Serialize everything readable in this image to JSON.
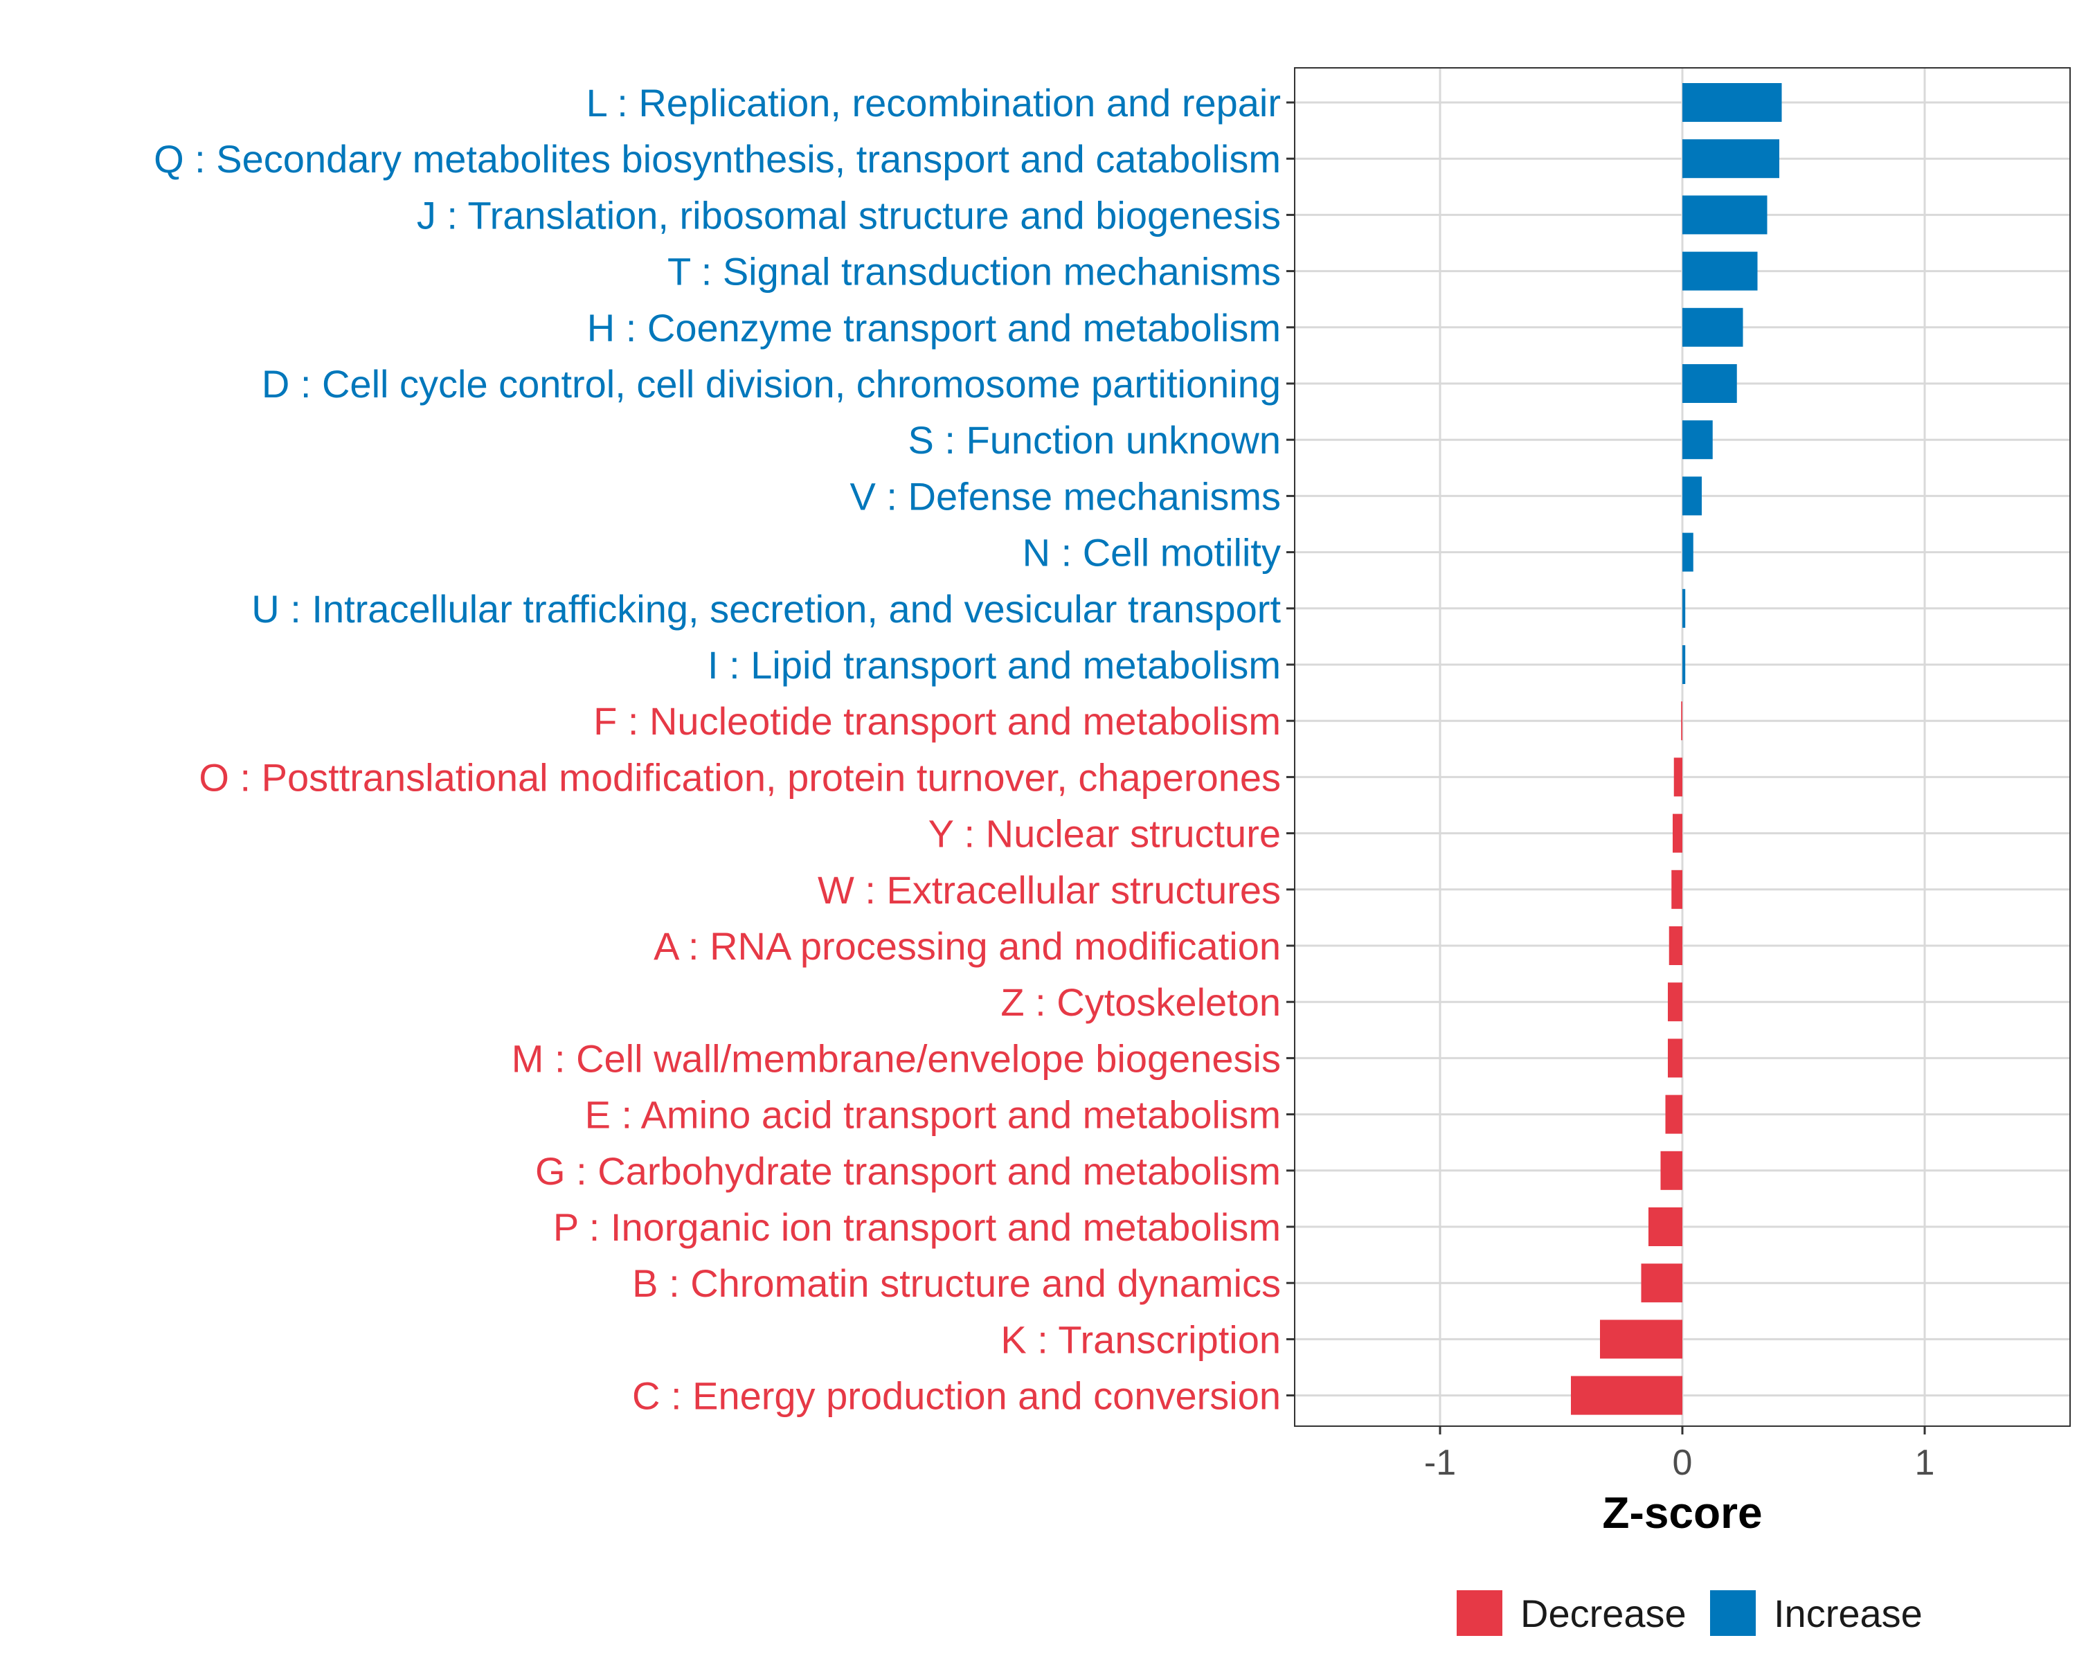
{
  "chart_data": {
    "type": "bar",
    "orientation": "horizontal",
    "xlabel": "Z-score",
    "ylabel": "",
    "xlim": [
      -1.6,
      1.6
    ],
    "xticks": [
      -1,
      0,
      1
    ],
    "xtick_labels": [
      "-1",
      "0",
      "1"
    ],
    "grid": true,
    "legend_position": "bottom",
    "colors": {
      "Decrease": "#e63946",
      "Increase": "#0077bb"
    },
    "legend": [
      {
        "name": "Decrease",
        "color": "#e63946"
      },
      {
        "name": "Increase",
        "color": "#0077bb"
      }
    ],
    "categories": [
      "L : Replication, recombination and repair",
      "Q : Secondary metabolites biosynthesis, transport and catabolism",
      "J : Translation, ribosomal structure and biogenesis",
      "T : Signal transduction mechanisms",
      "H : Coenzyme transport and metabolism",
      "D : Cell cycle control, cell division, chromosome partitioning",
      "S : Function unknown",
      "V : Defense mechanisms",
      "N : Cell motility",
      "U : Intracellular trafficking, secretion, and vesicular transport",
      "I : Lipid transport and metabolism",
      "F : Nucleotide transport and metabolism",
      "O : Posttranslational modification, protein turnover, chaperones",
      "Y : Nuclear structure",
      "W : Extracellular structures",
      "A : RNA processing and modification",
      "Z : Cytoskeleton",
      "M : Cell wall/membrane/envelope biogenesis",
      "E : Amino acid transport and metabolism",
      "G : Carbohydrate transport and metabolism",
      "P : Inorganic ion transport and metabolism",
      "B : Chromatin structure and dynamics",
      "K : Transcription",
      "C : Energy production and conversion"
    ],
    "values": [
      0.41,
      0.4,
      0.35,
      0.31,
      0.25,
      0.225,
      0.125,
      0.08,
      0.045,
      0.012,
      0.012,
      -0.005,
      -0.035,
      -0.04,
      -0.045,
      -0.055,
      -0.06,
      -0.06,
      -0.07,
      -0.09,
      -0.14,
      -0.17,
      -0.34,
      -0.46
    ],
    "groups": [
      "Increase",
      "Increase",
      "Increase",
      "Increase",
      "Increase",
      "Increase",
      "Increase",
      "Increase",
      "Increase",
      "Increase",
      "Increase",
      "Decrease",
      "Decrease",
      "Decrease",
      "Decrease",
      "Decrease",
      "Decrease",
      "Decrease",
      "Decrease",
      "Decrease",
      "Decrease",
      "Decrease",
      "Decrease",
      "Decrease"
    ]
  }
}
